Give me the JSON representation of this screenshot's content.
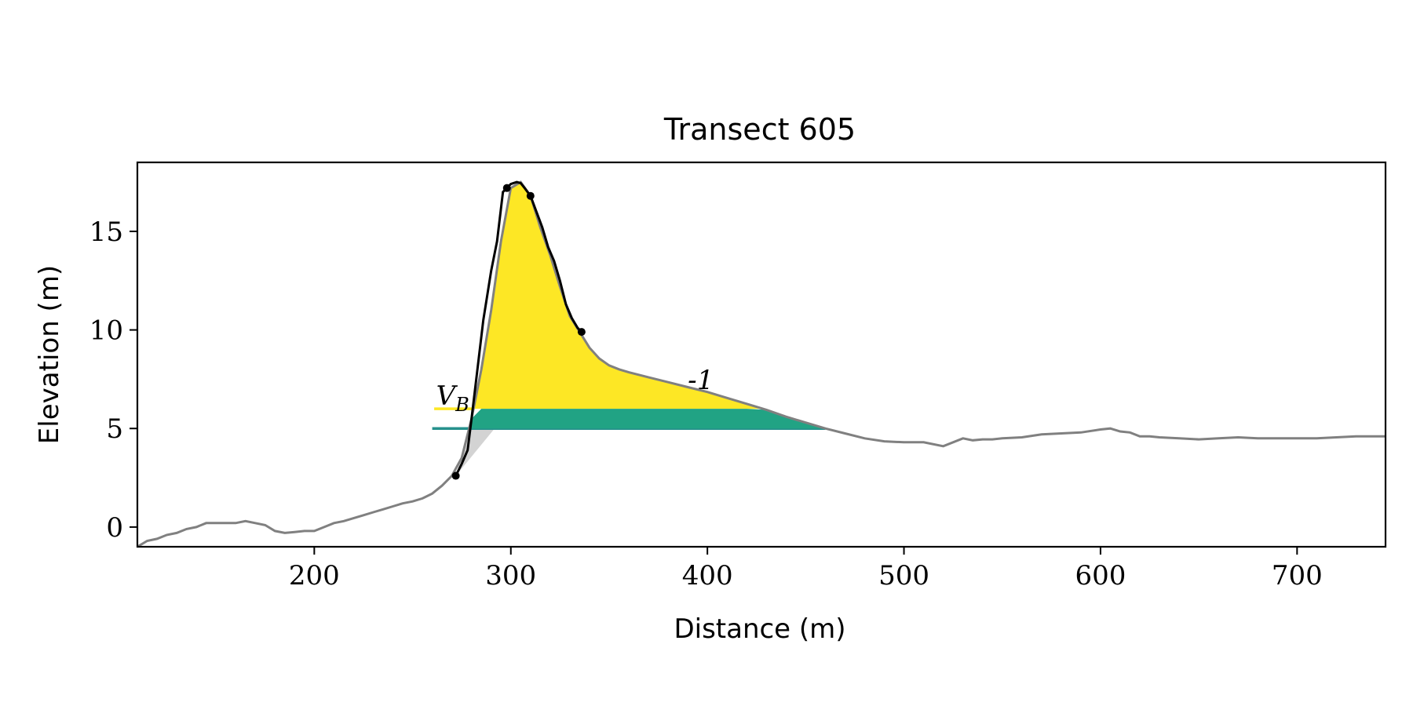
{
  "chart_data": {
    "type": "line",
    "title": "Transect 605",
    "xlabel": "Distance (m)",
    "ylabel": "Elevation (m)",
    "xlim": [
      110,
      745
    ],
    "ylim": [
      -1.0,
      18.5
    ],
    "x_ticks": [
      200,
      300,
      400,
      500,
      600,
      700
    ],
    "y_ticks": [
      0,
      5,
      10,
      15
    ],
    "grid": false,
    "colors": {
      "profile": "#808080",
      "dune": "#000000",
      "upper_fill": "#fde725",
      "lower_fill": "#21a384",
      "lower_line": "#26918c",
      "below_fill": "#d3d3d3"
    },
    "fill_levels": {
      "lower": 5.0,
      "upper": 6.0
    },
    "annotations": [
      {
        "text": "V",
        "subscript": "B",
        "x": 262,
        "y": 6.2
      },
      {
        "text": "-1",
        "x": 390,
        "y": 7.0
      }
    ],
    "series": [
      {
        "role": "profile",
        "x": [
          110,
          115,
          120,
          125,
          130,
          135,
          140,
          145,
          150,
          155,
          160,
          165,
          170,
          175,
          180,
          185,
          190,
          195,
          200,
          205,
          210,
          215,
          220,
          225,
          230,
          235,
          240,
          245,
          250,
          255,
          260,
          265,
          270,
          275,
          280,
          285,
          290,
          295,
          300,
          305,
          310,
          315,
          320,
          325,
          330,
          335,
          340,
          345,
          350,
          355,
          360,
          370,
          380,
          390,
          400,
          410,
          420,
          430,
          440,
          450,
          460,
          470,
          480,
          490,
          500,
          510,
          520,
          530,
          535,
          540,
          545,
          550,
          560,
          570,
          580,
          590,
          600,
          605,
          610,
          615,
          620,
          625,
          630,
          640,
          650,
          660,
          670,
          680,
          690,
          700,
          710,
          720,
          730,
          745
        ],
        "y": [
          -1.0,
          -0.7,
          -0.6,
          -0.4,
          -0.3,
          -0.1,
          0.0,
          0.2,
          0.2,
          0.2,
          0.2,
          0.3,
          0.2,
          0.1,
          -0.2,
          -0.3,
          -0.25,
          -0.2,
          -0.2,
          0.0,
          0.2,
          0.3,
          0.45,
          0.6,
          0.75,
          0.9,
          1.05,
          1.2,
          1.3,
          1.45,
          1.7,
          2.1,
          2.6,
          3.5,
          5.5,
          8.0,
          11.0,
          14.5,
          17.2,
          17.5,
          16.8,
          15.2,
          13.8,
          12.2,
          10.7,
          9.9,
          9.1,
          8.55,
          8.2,
          8.0,
          7.85,
          7.6,
          7.35,
          7.1,
          6.85,
          6.55,
          6.25,
          5.95,
          5.6,
          5.3,
          5.0,
          4.75,
          4.5,
          4.35,
          4.3,
          4.3,
          4.1,
          4.5,
          4.4,
          4.45,
          4.45,
          4.5,
          4.55,
          4.7,
          4.75,
          4.8,
          4.95,
          5.0,
          4.85,
          4.8,
          4.6,
          4.6,
          4.55,
          4.5,
          4.45,
          4.5,
          4.55,
          4.5,
          4.5,
          4.5,
          4.5,
          4.55,
          4.6,
          4.6
        ]
      },
      {
        "role": "dune",
        "x": [
          272,
          275,
          278,
          280,
          283,
          286,
          290,
          293,
          296,
          298,
          300,
          303,
          305,
          307,
          310,
          313,
          316,
          319,
          322,
          325,
          328,
          331,
          334,
          336
        ],
        "y": [
          2.6,
          3.2,
          3.9,
          5.5,
          8.0,
          10.5,
          13.0,
          14.5,
          17.0,
          17.2,
          17.4,
          17.5,
          17.45,
          17.2,
          16.8,
          16.0,
          15.2,
          14.2,
          13.5,
          12.5,
          11.3,
          10.6,
          10.1,
          9.9
        ]
      }
    ],
    "dune_markers": [
      {
        "x": 272,
        "y": 2.6
      },
      {
        "x": 298,
        "y": 17.2
      },
      {
        "x": 310,
        "y": 16.8
      },
      {
        "x": 336,
        "y": 9.9
      }
    ]
  }
}
